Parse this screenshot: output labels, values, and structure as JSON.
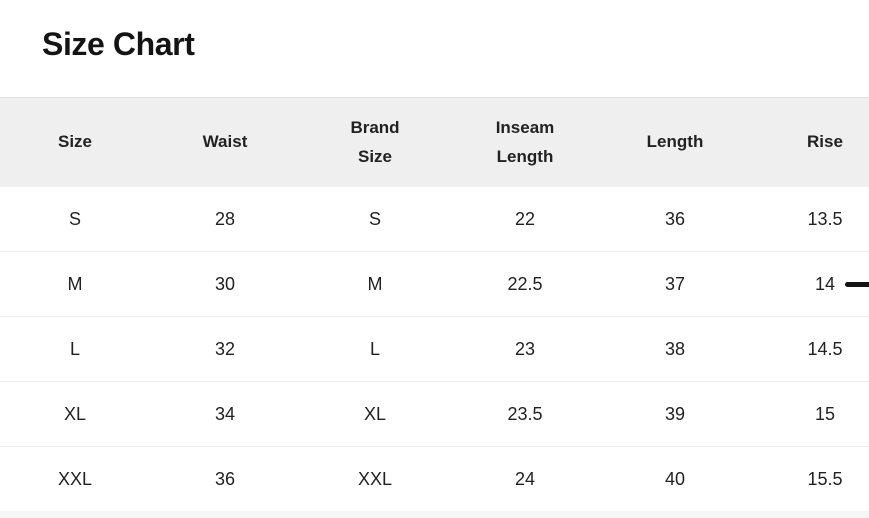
{
  "page": {
    "title": "Size Chart"
  },
  "theme": {
    "background": "#ffffff",
    "title_color": "#141414",
    "text": "#222222",
    "header_bg": "#efefef",
    "header_top_border": "#e3e3e3",
    "divider": "#ededed",
    "dash_color": "#141414",
    "bottom_strip_bg": "#f6f6f7"
  },
  "table": {
    "columns": [
      {
        "id": "size",
        "label": "Size"
      },
      {
        "id": "waist",
        "label": "Waist"
      },
      {
        "id": "brand-size",
        "label": "Brand\nSize"
      },
      {
        "id": "inseam-length",
        "label": "Inseam\nLength"
      },
      {
        "id": "length",
        "label": "Length"
      },
      {
        "id": "rise",
        "label": "Rise"
      }
    ],
    "rows": [
      [
        "S",
        "28",
        "S",
        "22",
        "36",
        "13.5"
      ],
      [
        "M",
        "30",
        "M",
        "22.5",
        "37",
        "14"
      ],
      [
        "L",
        "32",
        "L",
        "23",
        "38",
        "14.5"
      ],
      [
        "XL",
        "34",
        "XL",
        "23.5",
        "39",
        "15"
      ],
      [
        "XXL",
        "36",
        "XXL",
        "24",
        "40",
        "15.5"
      ]
    ],
    "row_marker": {
      "attached_row": "M",
      "attached_column": "rise",
      "glyph": "dash"
    }
  }
}
